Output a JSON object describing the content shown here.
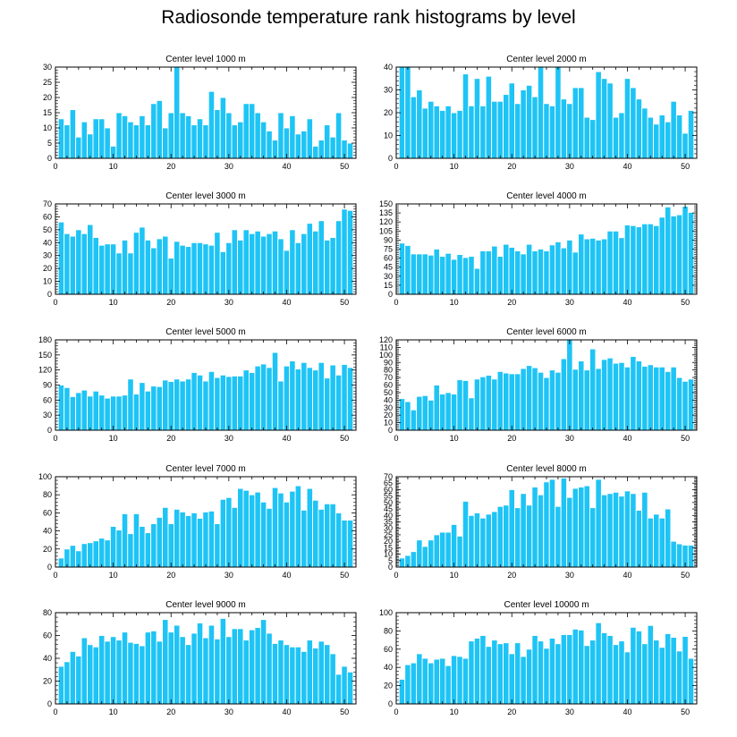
{
  "figure_title": "Radiosonde temperature rank histograms by level",
  "colors": {
    "bar": "#1ec4f5",
    "bar_edge": "#ffffff",
    "axis": "#000000"
  },
  "chart_data": [
    {
      "type": "bar",
      "title": "Center level 1000 m",
      "xlim": [
        0,
        52
      ],
      "ylim": [
        0,
        30
      ],
      "xticks": [
        0,
        10,
        20,
        30,
        40,
        50
      ],
      "yticks": [
        0,
        5,
        10,
        15,
        20,
        25,
        30
      ],
      "x": [
        1,
        2,
        3,
        4,
        5,
        6,
        7,
        8,
        9,
        10,
        11,
        12,
        13,
        14,
        15,
        16,
        17,
        18,
        19,
        20,
        21,
        22,
        23,
        24,
        25,
        26,
        27,
        28,
        29,
        30,
        31,
        32,
        33,
        34,
        35,
        36,
        37,
        38,
        39,
        40,
        41,
        42,
        43,
        44,
        45,
        46,
        47,
        48,
        49,
        50,
        51
      ],
      "values": [
        13,
        11,
        16,
        7,
        12,
        8,
        13,
        13,
        10,
        4,
        15,
        14,
        12,
        11,
        14,
        11,
        18,
        19,
        10,
        15,
        30,
        15,
        14,
        11,
        13,
        11,
        22,
        16,
        20,
        15,
        11,
        12,
        18,
        18,
        15,
        12,
        9,
        6,
        15,
        10,
        14,
        8,
        9,
        13,
        4,
        6,
        11,
        7,
        15,
        6,
        5
      ]
    },
    {
      "type": "bar",
      "title": "Center level 2000 m",
      "xlim": [
        0,
        52
      ],
      "ylim": [
        0,
        40
      ],
      "xticks": [
        0,
        10,
        20,
        30,
        40,
        50
      ],
      "yticks": [
        0,
        10,
        20,
        30,
        40
      ],
      "x": [
        1,
        2,
        3,
        4,
        5,
        6,
        7,
        8,
        9,
        10,
        11,
        12,
        13,
        14,
        15,
        16,
        17,
        18,
        19,
        20,
        21,
        22,
        23,
        24,
        25,
        26,
        27,
        28,
        29,
        30,
        31,
        32,
        33,
        34,
        35,
        36,
        37,
        38,
        39,
        40,
        41,
        42,
        43,
        44,
        45,
        46,
        47,
        48,
        49,
        50,
        51
      ],
      "values": [
        40,
        40,
        27,
        30,
        22,
        25,
        23,
        21,
        23,
        20,
        21,
        37,
        23,
        35,
        23,
        36,
        25,
        25,
        28,
        33,
        24,
        30,
        32,
        27,
        40,
        24,
        23,
        40,
        26,
        24,
        31,
        31,
        18,
        17,
        38,
        35,
        33,
        18,
        20,
        35,
        31,
        26,
        22,
        18,
        15,
        19,
        16,
        25,
        19,
        11,
        21
      ]
    },
    {
      "type": "bar",
      "title": "Center level 3000 m",
      "xlim": [
        0,
        52
      ],
      "ylim": [
        0,
        70
      ],
      "xticks": [
        0,
        10,
        20,
        30,
        40,
        50
      ],
      "yticks": [
        0,
        10,
        20,
        30,
        40,
        50,
        60,
        70
      ],
      "x": [
        1,
        2,
        3,
        4,
        5,
        6,
        7,
        8,
        9,
        10,
        11,
        12,
        13,
        14,
        15,
        16,
        17,
        18,
        19,
        20,
        21,
        22,
        23,
        24,
        25,
        26,
        27,
        28,
        29,
        30,
        31,
        32,
        33,
        34,
        35,
        36,
        37,
        38,
        39,
        40,
        41,
        42,
        43,
        44,
        45,
        46,
        47,
        48,
        49,
        50,
        51
      ],
      "values": [
        56,
        47,
        45,
        50,
        47,
        54,
        44,
        38,
        39,
        39,
        32,
        42,
        32,
        48,
        52,
        42,
        36,
        43,
        45,
        28,
        41,
        38,
        37,
        40,
        40,
        39,
        38,
        48,
        33,
        40,
        50,
        42,
        50,
        47,
        49,
        45,
        47,
        49,
        43,
        34,
        50,
        40,
        47,
        55,
        49,
        57,
        42,
        44,
        57,
        66,
        65
      ]
    },
    {
      "type": "bar",
      "title": "Center level 4000 m",
      "xlim": [
        0,
        52
      ],
      "ylim": [
        0,
        150
      ],
      "xticks": [
        0,
        10,
        20,
        30,
        40,
        50
      ],
      "yticks": [
        0,
        15,
        30,
        45,
        60,
        75,
        90,
        105,
        120,
        135,
        150
      ],
      "x": [
        1,
        2,
        3,
        4,
        5,
        6,
        7,
        8,
        9,
        10,
        11,
        12,
        13,
        14,
        15,
        16,
        17,
        18,
        19,
        20,
        21,
        22,
        23,
        24,
        25,
        26,
        27,
        28,
        29,
        30,
        31,
        32,
        33,
        34,
        35,
        36,
        37,
        38,
        39,
        40,
        41,
        42,
        43,
        44,
        45,
        46,
        47,
        48,
        49,
        50,
        51
      ],
      "values": [
        85,
        81,
        67,
        67,
        67,
        65,
        75,
        63,
        68,
        58,
        66,
        61,
        63,
        43,
        72,
        72,
        80,
        63,
        83,
        78,
        72,
        67,
        83,
        72,
        75,
        72,
        82,
        87,
        77,
        90,
        70,
        100,
        92,
        93,
        90,
        92,
        105,
        105,
        94,
        115,
        114,
        112,
        117,
        117,
        114,
        128,
        145,
        130,
        132,
        146,
        136
      ]
    },
    {
      "type": "bar",
      "title": "Center level 5000 m",
      "xlim": [
        0,
        52
      ],
      "ylim": [
        0,
        180
      ],
      "xticks": [
        0,
        10,
        20,
        30,
        40,
        50
      ],
      "yticks": [
        0,
        30,
        60,
        90,
        120,
        150,
        180
      ],
      "x": [
        1,
        2,
        3,
        4,
        5,
        6,
        7,
        8,
        9,
        10,
        11,
        12,
        13,
        14,
        15,
        16,
        17,
        18,
        19,
        20,
        21,
        22,
        23,
        24,
        25,
        26,
        27,
        28,
        29,
        30,
        31,
        32,
        33,
        34,
        35,
        36,
        37,
        38,
        39,
        40,
        41,
        42,
        43,
        44,
        45,
        46,
        47,
        48,
        49,
        50,
        51
      ],
      "values": [
        90,
        85,
        67,
        75,
        80,
        68,
        78,
        70,
        64,
        68,
        68,
        70,
        102,
        72,
        95,
        78,
        88,
        87,
        100,
        97,
        102,
        98,
        102,
        115,
        110,
        98,
        117,
        105,
        110,
        107,
        108,
        108,
        120,
        115,
        128,
        132,
        125,
        155,
        98,
        128,
        138,
        122,
        135,
        125,
        120,
        135,
        104,
        130,
        110,
        131,
        125
      ]
    },
    {
      "type": "bar",
      "title": "Center level 6000 m",
      "xlim": [
        0,
        52
      ],
      "ylim": [
        0,
        120
      ],
      "xticks": [
        0,
        10,
        20,
        30,
        40,
        50
      ],
      "yticks": [
        0,
        10,
        20,
        30,
        40,
        50,
        60,
        70,
        80,
        90,
        100,
        110,
        120
      ],
      "x": [
        1,
        2,
        3,
        4,
        5,
        6,
        7,
        8,
        9,
        10,
        11,
        12,
        13,
        14,
        15,
        16,
        17,
        18,
        19,
        20,
        21,
        22,
        23,
        24,
        25,
        26,
        27,
        28,
        29,
        30,
        31,
        32,
        33,
        34,
        35,
        36,
        37,
        38,
        39,
        40,
        41,
        42,
        43,
        44,
        45,
        46,
        47,
        48,
        49,
        50,
        51
      ],
      "values": [
        42,
        38,
        27,
        45,
        46,
        40,
        60,
        48,
        50,
        48,
        67,
        66,
        43,
        68,
        71,
        73,
        68,
        78,
        76,
        75,
        75,
        82,
        86,
        83,
        77,
        70,
        80,
        77,
        95,
        120,
        81,
        92,
        80,
        108,
        82,
        94,
        96,
        89,
        90,
        84,
        98,
        92,
        85,
        87,
        84,
        84,
        78,
        84,
        70,
        65,
        68
      ]
    },
    {
      "type": "bar",
      "title": "Center level 7000 m",
      "xlim": [
        0,
        52
      ],
      "ylim": [
        0,
        100
      ],
      "xticks": [
        0,
        10,
        20,
        30,
        40,
        50
      ],
      "yticks": [
        0,
        20,
        40,
        60,
        80,
        100
      ],
      "x": [
        1,
        2,
        3,
        4,
        5,
        6,
        7,
        8,
        9,
        10,
        11,
        12,
        13,
        14,
        15,
        16,
        17,
        18,
        19,
        20,
        21,
        22,
        23,
        24,
        25,
        26,
        27,
        28,
        29,
        30,
        31,
        32,
        33,
        34,
        35,
        36,
        37,
        38,
        39,
        40,
        41,
        42,
        43,
        44,
        45,
        46,
        47,
        48,
        49,
        50,
        51
      ],
      "values": [
        10,
        20,
        24,
        18,
        26,
        27,
        29,
        32,
        30,
        45,
        41,
        59,
        37,
        59,
        45,
        38,
        48,
        55,
        66,
        48,
        64,
        61,
        57,
        60,
        54,
        61,
        62,
        48,
        75,
        77,
        66,
        87,
        85,
        80,
        83,
        72,
        65,
        88,
        82,
        72,
        84,
        90,
        63,
        87,
        74,
        64,
        70,
        70,
        60,
        52,
        52
      ]
    },
    {
      "type": "bar",
      "title": "Center level 8000 m",
      "xlim": [
        0,
        52
      ],
      "ylim": [
        0,
        70
      ],
      "xticks": [
        0,
        10,
        20,
        30,
        40,
        50
      ],
      "yticks": [
        0,
        5,
        10,
        15,
        20,
        25,
        30,
        35,
        40,
        45,
        50,
        55,
        60,
        65,
        70
      ],
      "x": [
        1,
        2,
        3,
        4,
        5,
        6,
        7,
        8,
        9,
        10,
        11,
        12,
        13,
        14,
        15,
        16,
        17,
        18,
        19,
        20,
        21,
        22,
        23,
        24,
        25,
        26,
        27,
        28,
        29,
        30,
        31,
        32,
        33,
        34,
        35,
        36,
        37,
        38,
        39,
        40,
        41,
        42,
        43,
        44,
        45,
        46,
        47,
        48,
        49,
        50,
        51
      ],
      "values": [
        7,
        9,
        12,
        21,
        16,
        21,
        25,
        27,
        27,
        33,
        24,
        51,
        40,
        42,
        38,
        41,
        43,
        47,
        48,
        60,
        46,
        57,
        48,
        62,
        56,
        66,
        68,
        47,
        69,
        54,
        61,
        62,
        63,
        46,
        68,
        56,
        57,
        58,
        55,
        59,
        57,
        44,
        58,
        38,
        41,
        38,
        45,
        20,
        18,
        17,
        17
      ]
    },
    {
      "type": "bar",
      "title": "Center level 9000 m",
      "xlim": [
        0,
        52
      ],
      "ylim": [
        0,
        80
      ],
      "xticks": [
        0,
        10,
        20,
        30,
        40,
        50
      ],
      "yticks": [
        0,
        20,
        40,
        60,
        80
      ],
      "x": [
        1,
        2,
        3,
        4,
        5,
        6,
        7,
        8,
        9,
        10,
        11,
        12,
        13,
        14,
        15,
        16,
        17,
        18,
        19,
        20,
        21,
        22,
        23,
        24,
        25,
        26,
        27,
        28,
        29,
        30,
        31,
        32,
        33,
        34,
        35,
        36,
        37,
        38,
        39,
        40,
        41,
        42,
        43,
        44,
        45,
        46,
        47,
        48,
        49,
        50,
        51
      ],
      "values": [
        33,
        37,
        46,
        42,
        58,
        52,
        50,
        60,
        55,
        59,
        56,
        63,
        54,
        53,
        51,
        63,
        64,
        55,
        74,
        63,
        69,
        59,
        52,
        62,
        71,
        58,
        69,
        57,
        75,
        59,
        66,
        66,
        56,
        65,
        67,
        74,
        62,
        53,
        56,
        52,
        50,
        50,
        46,
        56,
        49,
        55,
        52,
        44,
        26,
        33,
        28
      ]
    },
    {
      "type": "bar",
      "title": "Center level 10000 m",
      "xlim": [
        0,
        52
      ],
      "ylim": [
        0,
        100
      ],
      "xticks": [
        0,
        10,
        20,
        30,
        40,
        50
      ],
      "yticks": [
        0,
        20,
        40,
        60,
        80,
        100
      ],
      "x": [
        1,
        2,
        3,
        4,
        5,
        6,
        7,
        8,
        9,
        10,
        11,
        12,
        13,
        14,
        15,
        16,
        17,
        18,
        19,
        20,
        21,
        22,
        23,
        24,
        25,
        26,
        27,
        28,
        29,
        30,
        31,
        32,
        33,
        34,
        35,
        36,
        37,
        38,
        39,
        40,
        41,
        42,
        43,
        44,
        45,
        46,
        47,
        48,
        49,
        50,
        51
      ],
      "values": [
        27,
        43,
        45,
        55,
        50,
        45,
        49,
        50,
        42,
        53,
        52,
        50,
        69,
        72,
        75,
        63,
        70,
        66,
        67,
        55,
        67,
        52,
        60,
        75,
        69,
        61,
        72,
        66,
        76,
        76,
        82,
        81,
        64,
        70,
        89,
        78,
        75,
        65,
        69,
        57,
        84,
        80,
        66,
        86,
        70,
        62,
        77,
        73,
        58,
        74,
        50
      ]
    }
  ]
}
